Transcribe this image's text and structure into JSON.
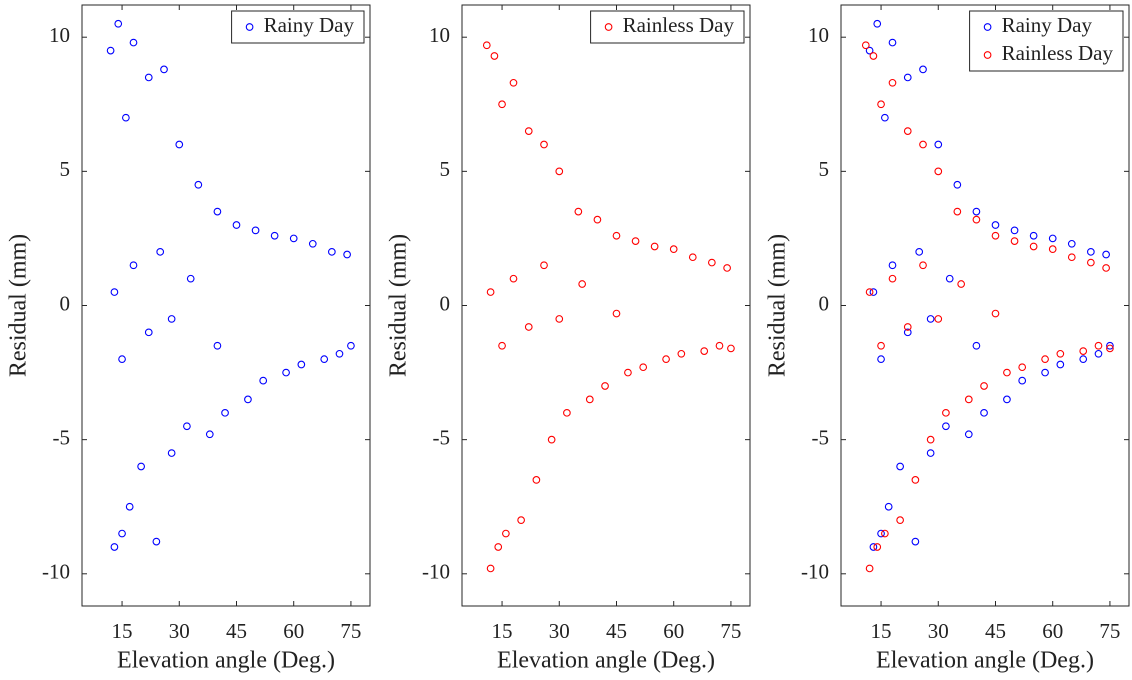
{
  "chart_data": [
    {
      "type": "scatter",
      "x_label": "Elevation angle (Deg.)",
      "y_label": "Residual (mm)",
      "xlim": [
        4.5,
        80
      ],
      "ylim": [
        -11.2,
        11.2
      ],
      "xticks": [
        15,
        30,
        45,
        60,
        75
      ],
      "yticks": [
        -10,
        -5,
        0,
        5,
        10
      ],
      "legend": "top-right",
      "series": [
        {
          "name": "Rainy Day",
          "color": "#0000ff",
          "x": [
            12,
            13,
            14,
            15,
            16,
            17,
            18,
            20,
            22,
            24,
            26,
            28,
            30,
            32,
            35,
            38,
            40,
            42,
            45,
            48,
            50,
            52,
            55,
            58,
            60,
            62,
            65,
            68,
            70,
            72,
            74,
            75,
            13,
            15,
            18,
            22,
            25,
            28,
            33,
            40
          ],
          "values": [
            9.5,
            -9.0,
            10.5,
            -8.5,
            7.0,
            -7.5,
            9.8,
            -6.0,
            8.5,
            -8.8,
            8.8,
            -5.5,
            6.0,
            -4.5,
            4.5,
            -4.8,
            3.5,
            -4.0,
            3.0,
            -3.5,
            2.8,
            -2.8,
            2.6,
            -2.5,
            2.5,
            -2.2,
            2.3,
            -2.0,
            2.0,
            -1.8,
            1.9,
            -1.5,
            0.5,
            -2.0,
            1.5,
            -1.0,
            2.0,
            -0.5,
            1.0,
            -1.5
          ]
        }
      ]
    },
    {
      "type": "scatter",
      "x_label": "Elevation angle (Deg.)",
      "y_label": "Residual (mm)",
      "xlim": [
        4.5,
        80
      ],
      "ylim": [
        -11.2,
        11.2
      ],
      "xticks": [
        15,
        30,
        45,
        60,
        75
      ],
      "yticks": [
        -10,
        -5,
        0,
        5,
        10
      ],
      "legend": "top-right",
      "series": [
        {
          "name": "Rainless Day",
          "color": "#ff0000",
          "x": [
            11,
            12,
            13,
            14,
            15,
            16,
            18,
            20,
            22,
            24,
            26,
            28,
            30,
            32,
            35,
            38,
            40,
            42,
            45,
            48,
            50,
            52,
            55,
            58,
            60,
            62,
            65,
            68,
            70,
            72,
            74,
            75,
            12,
            15,
            18,
            22,
            26,
            30,
            36,
            45
          ],
          "values": [
            9.7,
            -9.8,
            9.3,
            -9.0,
            7.5,
            -8.5,
            8.3,
            -8.0,
            6.5,
            -6.5,
            6.0,
            -5.0,
            5.0,
            -4.0,
            3.5,
            -3.5,
            3.2,
            -3.0,
            2.6,
            -2.5,
            2.4,
            -2.3,
            2.2,
            -2.0,
            2.1,
            -1.8,
            1.8,
            -1.7,
            1.6,
            -1.5,
            1.4,
            -1.6,
            0.5,
            -1.5,
            1.0,
            -0.8,
            1.5,
            -0.5,
            0.8,
            -0.3
          ]
        }
      ]
    },
    {
      "type": "scatter",
      "x_label": "Elevation angle (Deg.)",
      "y_label": "Residual (mm)",
      "xlim": [
        4.5,
        80
      ],
      "ylim": [
        -11.2,
        11.2
      ],
      "xticks": [
        15,
        30,
        45,
        60,
        75
      ],
      "yticks": [
        -10,
        -5,
        0,
        5,
        10
      ],
      "legend": "top-right",
      "series": [
        {
          "name": "Rainy Day",
          "color": "#0000ff",
          "x": [
            12,
            13,
            14,
            15,
            16,
            17,
            18,
            20,
            22,
            24,
            26,
            28,
            30,
            32,
            35,
            38,
            40,
            42,
            45,
            48,
            50,
            52,
            55,
            58,
            60,
            62,
            65,
            68,
            70,
            72,
            74,
            75,
            13,
            15,
            18,
            22,
            25,
            28,
            33,
            40
          ],
          "values": [
            9.5,
            -9.0,
            10.5,
            -8.5,
            7.0,
            -7.5,
            9.8,
            -6.0,
            8.5,
            -8.8,
            8.8,
            -5.5,
            6.0,
            -4.5,
            4.5,
            -4.8,
            3.5,
            -4.0,
            3.0,
            -3.5,
            2.8,
            -2.8,
            2.6,
            -2.5,
            2.5,
            -2.2,
            2.3,
            -2.0,
            2.0,
            -1.8,
            1.9,
            -1.5,
            0.5,
            -2.0,
            1.5,
            -1.0,
            2.0,
            -0.5,
            1.0,
            -1.5
          ]
        },
        {
          "name": "Rainless Day",
          "color": "#ff0000",
          "x": [
            11,
            12,
            13,
            14,
            15,
            16,
            18,
            20,
            22,
            24,
            26,
            28,
            30,
            32,
            35,
            38,
            40,
            42,
            45,
            48,
            50,
            52,
            55,
            58,
            60,
            62,
            65,
            68,
            70,
            72,
            74,
            75,
            12,
            15,
            18,
            22,
            26,
            30,
            36,
            45
          ],
          "values": [
            9.7,
            -9.8,
            9.3,
            -9.0,
            7.5,
            -8.5,
            8.3,
            -8.0,
            6.5,
            -6.5,
            6.0,
            -5.0,
            5.0,
            -4.0,
            3.5,
            -3.5,
            3.2,
            -3.0,
            2.6,
            -2.5,
            2.4,
            -2.3,
            2.2,
            -2.0,
            2.1,
            -1.8,
            1.8,
            -1.7,
            1.6,
            -1.5,
            1.4,
            -1.6,
            0.5,
            -1.5,
            1.0,
            -0.8,
            1.5,
            -0.5,
            0.8,
            -0.3
          ]
        }
      ]
    }
  ]
}
